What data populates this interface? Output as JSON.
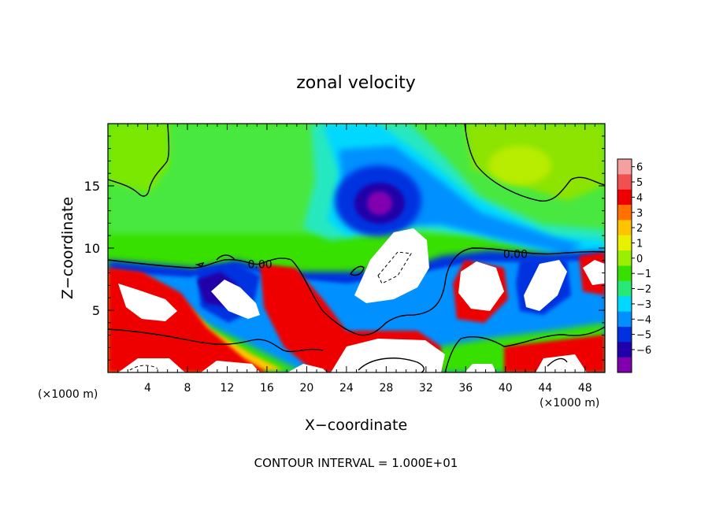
{
  "chart_data": {
    "type": "heatmap",
    "title": "zonal velocity",
    "xlabel": "X−coordinate",
    "ylabel": "Z−coordinate",
    "x_unit_left": "(×1000 m)",
    "x_unit_right": "(×1000 m)",
    "footer": "CONTOUR INTERVAL = 1.000E+01",
    "xlim": [
      0,
      50
    ],
    "ylim": [
      0,
      20
    ],
    "xticks": [
      4,
      8,
      12,
      16,
      20,
      24,
      28,
      32,
      36,
      40,
      44,
      48
    ],
    "yticks": [
      5,
      10,
      15
    ],
    "contour_labels": [
      {
        "text": "0.00",
        "x": 15.3,
        "z": 8.4
      },
      {
        "text": "0.00",
        "x": 41.0,
        "z": 9.2
      }
    ],
    "colorbar": {
      "levels": [
        6,
        5,
        4,
        3,
        2,
        1,
        0,
        -1,
        -2,
        -3,
        -4,
        -5,
        -6
      ],
      "level_labels": [
        "6",
        "5",
        "4",
        "3",
        "2",
        "1",
        "0",
        "−1",
        "−2",
        "−3",
        "−4",
        "−5",
        "−6"
      ],
      "colors": [
        "#f4a0a0",
        "#f05050",
        "#ee0000",
        "#ff7000",
        "#ffc400",
        "#e8f000",
        "#9aee00",
        "#38e000",
        "#28e878",
        "#00d8ff",
        "#0090ff",
        "#0030e0",
        "#2000a8",
        "#8000b0"
      ]
    },
    "features": [
      {
        "kind": "min",
        "x": 28,
        "z": 14,
        "value": -6
      },
      {
        "kind": "max",
        "x": 29,
        "z": 8.5,
        "value": 6
      },
      {
        "kind": "max",
        "x": 37,
        "z": 7,
        "value": 6
      },
      {
        "kind": "max",
        "x": 45,
        "z": 7.5,
        "value": 6
      },
      {
        "kind": "max",
        "x": 11.5,
        "z": 6,
        "value": 6
      },
      {
        "kind": "max",
        "x": 5,
        "z": 6,
        "value": 6
      },
      {
        "kind": "max",
        "x": 28,
        "z": 1.5,
        "value": 6
      }
    ]
  }
}
